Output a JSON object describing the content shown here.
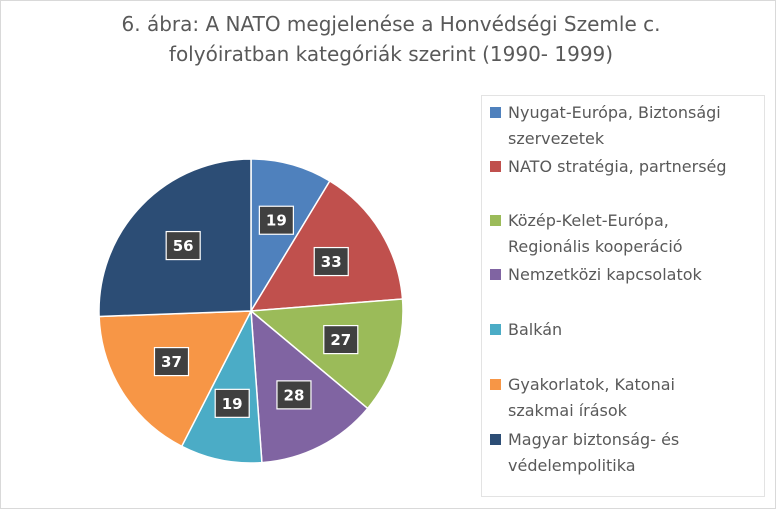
{
  "chart_data": {
    "type": "pie",
    "title_lines": [
      "6. ábra: A NATO megjelenése a Honvédségi Szemle c.",
      "folyóiratban kategóriák szerint (1990- 1999)"
    ],
    "legend_position": "right",
    "slices": [
      {
        "label_lines": [
          "Nyugat-Európa, Biztonsági",
          "szervezetek"
        ],
        "value": 19,
        "color": "#4f81bd"
      },
      {
        "label_lines": [
          "NATO stratégia, partnerség"
        ],
        "value": 33,
        "color": "#c0504d"
      },
      {
        "label_lines": [
          "Közép-Kelet-Európa,",
          "Regionális kooperáció"
        ],
        "value": 27,
        "color": "#9bbb59"
      },
      {
        "label_lines": [
          "Nemzetközi kapcsolatok"
        ],
        "value": 28,
        "color": "#8064a2"
      },
      {
        "label_lines": [
          "Balkán"
        ],
        "value": 19,
        "color": "#4bacc6"
      },
      {
        "label_lines": [
          "Gyakorlatok, Katonai",
          "szakmai írások"
        ],
        "value": 37,
        "color": "#f79646"
      },
      {
        "label_lines": [
          "Magyar biztonság- és",
          "védelempolitika"
        ],
        "value": 56,
        "color": "#2c4d75"
      }
    ]
  }
}
